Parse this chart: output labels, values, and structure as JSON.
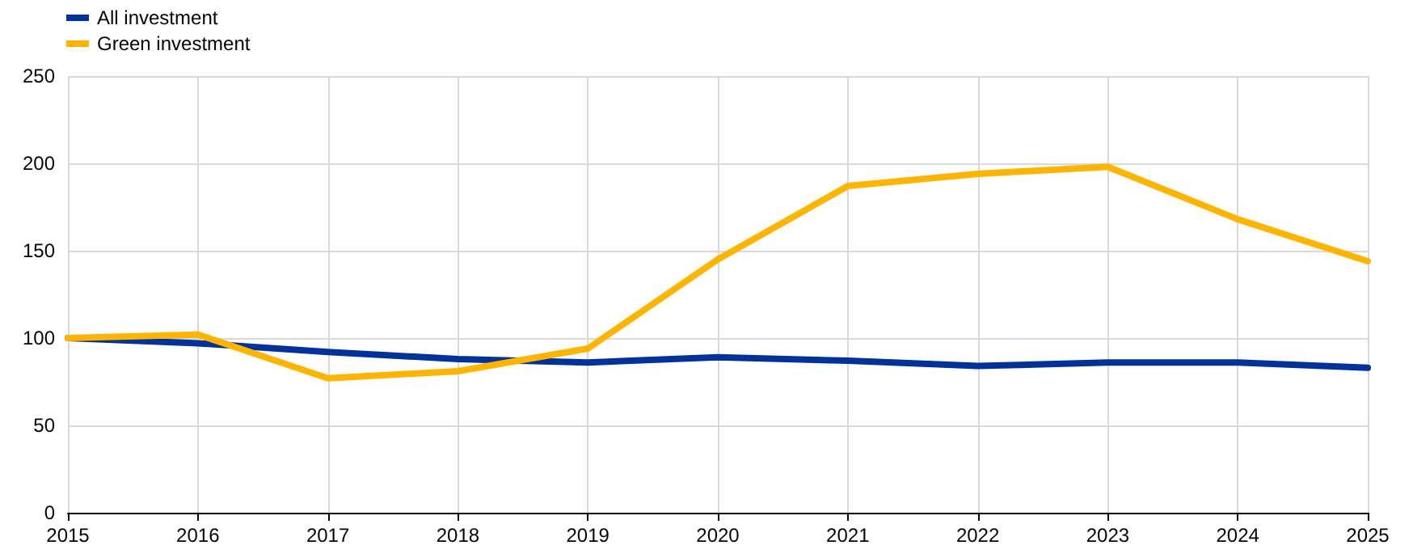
{
  "chart_data": {
    "type": "line",
    "categories": [
      "2015",
      "2016",
      "2017",
      "2018",
      "2019",
      "2020",
      "2021",
      "2022",
      "2023",
      "2024",
      "2025"
    ],
    "series": [
      {
        "name": "All investment",
        "color": "#003299",
        "values": [
          100,
          97,
          92,
          88,
          86,
          89,
          87,
          84,
          86,
          86,
          83
        ]
      },
      {
        "name": "Green investment",
        "color": "#ffb400",
        "values": [
          100,
          102,
          77,
          81,
          94,
          145,
          187,
          194,
          198,
          168,
          144
        ]
      }
    ],
    "ylim": [
      0,
      250
    ],
    "yticks": [
      0,
      50,
      100,
      150,
      200,
      250
    ],
    "grid": true,
    "legend": "top left",
    "marker": "none",
    "line_style": "solid"
  }
}
